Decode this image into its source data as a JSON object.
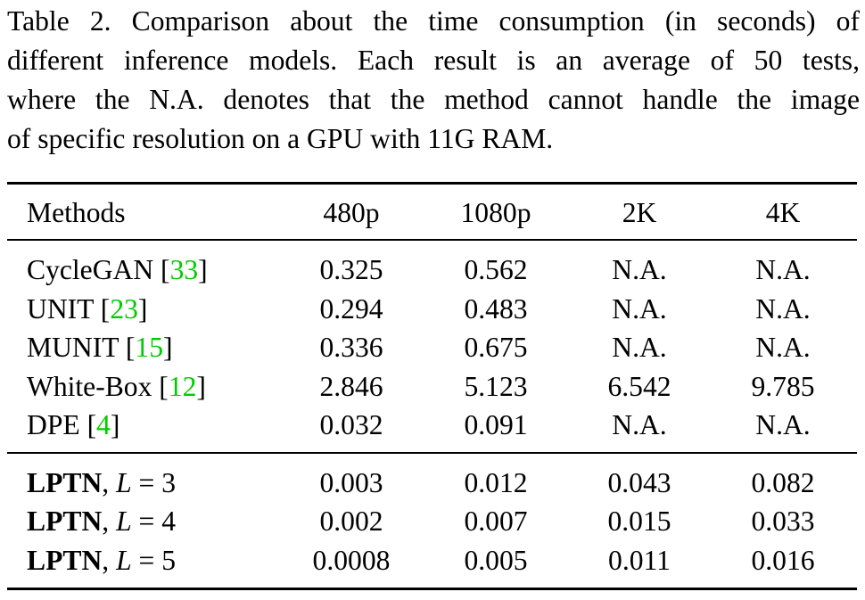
{
  "caption": {
    "lines": [
      "Table 2. Comparison about the time consumption (in seconds) of",
      "different inference models. Each result is an average of 50 tests,",
      "where the N.A. denotes that the method cannot handle the image",
      "of specific resolution on a GPU with 11G RAM."
    ]
  },
  "table": {
    "headers": [
      "Methods",
      "480p",
      "1080p",
      "2K",
      "4K"
    ],
    "baseline_rows": [
      {
        "name": "CycleGAN",
        "ref": "33",
        "values": [
          "0.325",
          "0.562",
          "N.A.",
          "N.A."
        ]
      },
      {
        "name": "UNIT",
        "ref": "23",
        "values": [
          "0.294",
          "0.483",
          "N.A.",
          "N.A."
        ]
      },
      {
        "name": "MUNIT",
        "ref": "15",
        "values": [
          "0.336",
          "0.675",
          "N.A.",
          "N.A."
        ]
      },
      {
        "name": "White-Box",
        "ref": "12",
        "values": [
          "2.846",
          "5.123",
          "6.542",
          "9.785"
        ]
      },
      {
        "name": "DPE",
        "ref": "4",
        "values": [
          "0.032",
          "0.091",
          "N.A.",
          "N.A."
        ]
      }
    ],
    "lptn_rows": [
      {
        "name": "LPTN",
        "sep": ", ",
        "var": "L",
        "eq": " = ",
        "level": "3",
        "values": [
          "0.003",
          "0.012",
          "0.043",
          "0.082"
        ]
      },
      {
        "name": "LPTN",
        "sep": ", ",
        "var": "L",
        "eq": " = ",
        "level": "4",
        "values": [
          "0.002",
          "0.007",
          "0.015",
          "0.033"
        ]
      },
      {
        "name": "LPTN",
        "sep": ", ",
        "var": "L",
        "eq": " = ",
        "level": "5",
        "values": [
          "0.0008",
          "0.005",
          "0.011",
          "0.016"
        ]
      }
    ],
    "colors": {
      "citation": "#00cc00"
    }
  }
}
